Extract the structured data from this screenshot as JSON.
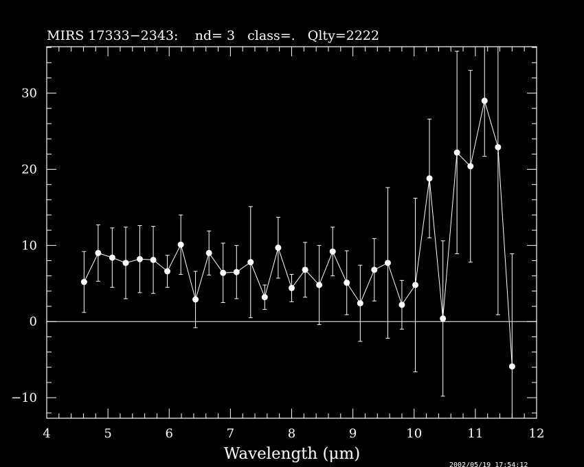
{
  "chart_data": {
    "type": "scatter",
    "title": "MIRS 17333−2343:    nd= 3   class=.   Qlty=2222",
    "xlabel": "Wavelength (μm)",
    "ylabel": "",
    "xlim": [
      4,
      12
    ],
    "ylim": [
      -12.7,
      36.1
    ],
    "x_ticks": [
      4,
      5,
      6,
      7,
      8,
      9,
      10,
      11,
      12
    ],
    "y_ticks": [
      -10,
      0,
      10,
      20,
      30
    ],
    "x_tick_labels": [
      "4",
      "5",
      "6",
      "7",
      "8",
      "9",
      "10",
      "11",
      "12"
    ],
    "y_tick_labels": [
      "−10",
      "0",
      "10",
      "20",
      "30"
    ],
    "reference_line_y": 0,
    "grid": false,
    "colors": {
      "background": "#000000",
      "foreground": "#ffffff"
    },
    "series": [
      {
        "x": [
          4.61,
          4.84,
          5.07,
          5.29,
          5.52,
          5.74,
          5.97,
          6.19,
          6.43,
          6.65,
          6.88,
          7.1,
          7.33,
          7.56,
          7.78,
          8.0,
          8.22,
          8.45,
          8.67,
          8.9,
          9.12,
          9.35,
          9.57,
          9.8,
          10.02,
          10.25,
          10.47,
          10.7,
          10.92,
          11.15,
          11.37,
          11.6
        ],
        "y": [
          5.2,
          9.0,
          8.4,
          7.7,
          8.2,
          8.1,
          6.6,
          10.1,
          2.9,
          9.0,
          6.4,
          6.5,
          7.8,
          3.2,
          9.7,
          4.4,
          6.8,
          4.8,
          9.2,
          5.1,
          2.4,
          6.8,
          7.7,
          2.2,
          4.8,
          18.8,
          0.4,
          22.2,
          20.4,
          29.0,
          22.9,
          -5.9
        ],
        "yerr": [
          4.0,
          3.7,
          3.9,
          4.7,
          4.4,
          4.4,
          2.1,
          3.9,
          3.7,
          2.9,
          3.9,
          3.5,
          7.3,
          1.6,
          4.0,
          1.8,
          3.6,
          5.2,
          3.2,
          4.2,
          5.0,
          4.1,
          9.9,
          3.2,
          11.4,
          7.8,
          10.2,
          13.3,
          12.6,
          7.3,
          22.0,
          14.8
        ]
      }
    ]
  },
  "stamp": "2002/05/19 17:54:12"
}
